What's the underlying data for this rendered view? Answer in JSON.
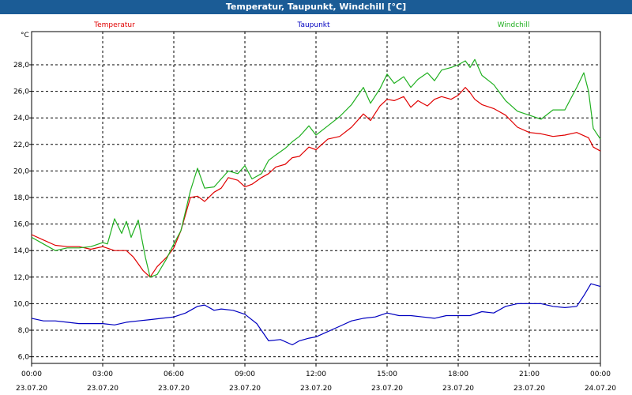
{
  "window": {
    "title": "Temperatur, Taupunkt, Windchill [°C]"
  },
  "chart_data": {
    "type": "line",
    "title": "Temperatur, Taupunkt, Windchill [°C]",
    "ylabel": "°C",
    "ylim": [
      5.5,
      30.5
    ],
    "xlim": [
      0,
      24
    ],
    "grid": true,
    "y_ticks": [
      "28,0",
      "26,0",
      "24,0",
      "22,0",
      "20,0",
      "18,0",
      "16,0",
      "14,0",
      "12,0",
      "10,0",
      "8,0",
      "6,0"
    ],
    "y_tick_values": [
      28,
      26,
      24,
      22,
      20,
      18,
      16,
      14,
      12,
      10,
      8,
      6
    ],
    "x_tick_values": [
      0,
      3,
      6,
      9,
      12,
      15,
      18,
      21,
      24
    ],
    "x_ticks_time": [
      "00:00",
      "03:00",
      "06:00",
      "09:00",
      "12:00",
      "15:00",
      "18:00",
      "21:00",
      "00:00"
    ],
    "x_ticks_date": [
      "23.07.20",
      "23.07.20",
      "23.07.20",
      "23.07.20",
      "23.07.20",
      "23.07.20",
      "23.07.20",
      "23.07.20",
      "24.07.20"
    ],
    "series": [
      {
        "name": "Temperatur",
        "color": "#e00000",
        "x": [
          0,
          0.5,
          1,
          1.5,
          2,
          2.5,
          3,
          3.5,
          4,
          4.3,
          4.7,
          5,
          5.3,
          5.7,
          6,
          6.3,
          6.7,
          7,
          7.3,
          7.7,
          8,
          8.3,
          8.7,
          9,
          9.3,
          9.7,
          10,
          10.3,
          10.7,
          11,
          11.3,
          11.7,
          12,
          12.5,
          13,
          13.5,
          14,
          14.3,
          14.7,
          15,
          15.3,
          15.7,
          16,
          16.3,
          16.7,
          17,
          17.3,
          17.7,
          18,
          18.3,
          18.5,
          18.7,
          19,
          19.5,
          20,
          20.5,
          21,
          21.5,
          22,
          22.5,
          23,
          23.5,
          23.7,
          24
        ],
        "values": [
          15.2,
          14.8,
          14.4,
          14.3,
          14.3,
          14.1,
          14.3,
          14.0,
          14.0,
          13.5,
          12.5,
          12.0,
          12.8,
          13.5,
          14.2,
          15.5,
          18.0,
          18.1,
          17.7,
          18.4,
          18.7,
          19.5,
          19.3,
          18.8,
          19.0,
          19.5,
          19.8,
          20.3,
          20.5,
          21.0,
          21.1,
          21.8,
          21.6,
          22.4,
          22.6,
          23.3,
          24.3,
          23.8,
          24.9,
          25.4,
          25.3,
          25.6,
          24.8,
          25.3,
          24.9,
          25.4,
          25.6,
          25.4,
          25.7,
          26.3,
          25.9,
          25.4,
          25.0,
          24.7,
          24.2,
          23.3,
          22.9,
          22.8,
          22.6,
          22.7,
          22.9,
          22.5,
          21.8,
          21.5
        ]
      },
      {
        "name": "Taupunkt",
        "color": "#0000c0",
        "x": [
          0,
          0.5,
          1,
          1.5,
          2,
          2.5,
          3,
          3.5,
          4,
          4.5,
          5,
          5.5,
          6,
          6.5,
          7,
          7.3,
          7.7,
          8,
          8.5,
          9,
          9.5,
          10,
          10.5,
          11,
          11.3,
          11.7,
          12,
          12.5,
          13,
          13.5,
          14,
          14.5,
          15,
          15.5,
          16,
          16.5,
          17,
          17.5,
          18,
          18.5,
          19,
          19.5,
          20,
          20.5,
          21,
          21.5,
          22,
          22.5,
          23,
          23.3,
          23.6,
          24
        ],
        "values": [
          8.9,
          8.7,
          8.7,
          8.6,
          8.5,
          8.5,
          8.5,
          8.4,
          8.6,
          8.7,
          8.8,
          8.9,
          9.0,
          9.3,
          9.8,
          9.9,
          9.5,
          9.6,
          9.5,
          9.2,
          8.5,
          7.2,
          7.3,
          6.9,
          7.2,
          7.4,
          7.5,
          7.9,
          8.3,
          8.7,
          8.9,
          9.0,
          9.3,
          9.1,
          9.1,
          9.0,
          8.9,
          9.1,
          9.1,
          9.1,
          9.4,
          9.3,
          9.8,
          10.0,
          10.0,
          10.0,
          9.8,
          9.7,
          9.8,
          10.6,
          11.5,
          11.3
        ]
      },
      {
        "name": "Windchill",
        "color": "#20b020",
        "x": [
          0,
          0.5,
          1,
          1.5,
          2,
          2.5,
          3,
          3.2,
          3.5,
          3.8,
          4,
          4.2,
          4.5,
          4.8,
          5,
          5.3,
          5.7,
          6,
          6.3,
          6.7,
          7,
          7.3,
          7.7,
          8,
          8.3,
          8.7,
          9,
          9.3,
          9.7,
          10,
          10.3,
          10.7,
          11,
          11.3,
          11.7,
          12,
          12.5,
          13,
          13.5,
          14,
          14.3,
          14.7,
          15,
          15.3,
          15.7,
          16,
          16.3,
          16.7,
          17,
          17.3,
          17.7,
          18,
          18.3,
          18.5,
          18.7,
          19,
          19.5,
          20,
          20.5,
          21,
          21.5,
          22,
          22.5,
          23,
          23.3,
          23.5,
          23.7,
          24
        ],
        "values": [
          15.0,
          14.5,
          14.0,
          14.2,
          14.2,
          14.3,
          14.6,
          14.5,
          16.4,
          15.3,
          16.2,
          15.0,
          16.3,
          13.5,
          12.0,
          12.2,
          13.4,
          14.5,
          15.5,
          18.5,
          20.2,
          18.7,
          18.8,
          19.4,
          20.0,
          19.8,
          20.4,
          19.4,
          19.8,
          20.8,
          21.2,
          21.7,
          22.2,
          22.6,
          23.4,
          22.7,
          23.4,
          24.1,
          25.0,
          26.3,
          25.1,
          26.2,
          27.3,
          26.6,
          27.1,
          26.3,
          26.9,
          27.4,
          26.8,
          27.6,
          27.8,
          28.0,
          28.3,
          27.8,
          28.4,
          27.2,
          26.5,
          25.3,
          24.5,
          24.2,
          23.9,
          24.6,
          24.6,
          26.3,
          27.4,
          26.0,
          23.2,
          22.4
        ]
      }
    ]
  }
}
